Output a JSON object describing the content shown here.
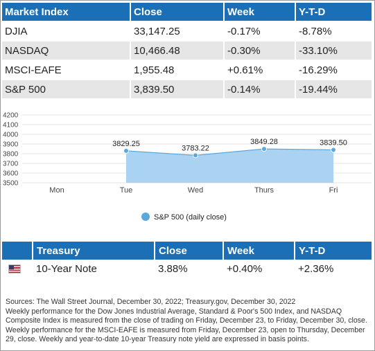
{
  "market_table": {
    "headers": [
      "Market Index",
      "Close",
      "Week",
      "Y-T-D"
    ],
    "rows": [
      [
        "DJIA",
        "33,147.25",
        "-0.17%",
        "-8.78%"
      ],
      [
        "NASDAQ",
        "10,466.48",
        "-0.30%",
        "-33.10%"
      ],
      [
        "MSCI-EAFE",
        "1,955.48",
        "+0.61%",
        "-16.29%"
      ],
      [
        "S&P 500",
        "3,839.50",
        "-0.14%",
        "-19.44%"
      ]
    ]
  },
  "chart_data": {
    "type": "area",
    "categories": [
      "Mon",
      "Tue",
      "Wed",
      "Thurs",
      "Fri"
    ],
    "series": [
      {
        "name": "S&P 500 (daily close)",
        "values": [
          null,
          3829.25,
          3783.22,
          3849.28,
          3839.5
        ],
        "labels": [
          "",
          "3829.25",
          "3783.22",
          "3849.28",
          "3839.50"
        ]
      }
    ],
    "ylim": [
      3500,
      4200
    ],
    "yticks": [
      "4200",
      "4100",
      "4000",
      "3900",
      "3800",
      "3700",
      "3600",
      "3500"
    ],
    "grid": true,
    "legend_position": "bottom",
    "colors": {
      "fill": "#a9d3f0",
      "line": "#5aa8dd",
      "marker": "#5aa8dd"
    }
  },
  "treasury_table": {
    "headers": [
      "Treasury",
      "Close",
      "Week",
      "Y-T-D"
    ],
    "row": [
      "10-Year Note",
      "3.88%",
      "+0.40%",
      "+2.36%"
    ],
    "flag_icon": "us-flag-icon"
  },
  "notes": {
    "sources": "Sources: The Wall Street Journal, December 30, 2022; Treasury.gov, December 30, 2022",
    "p1": "Weekly performance for the Dow Jones Industrial Average, Standard & Poor's 500 Index, and NASDAQ Composite Index is measured from the close of trading on Friday, December 23, to Friday, December 30, close.",
    "p2": "Weekly performance for the MSCI-EAFE is measured from Friday, December 23, open to Thursday, December 29, close. Weekly and year-to-date 10-year Treasury note yield are expressed in basis points."
  },
  "colors": {
    "header_blue": "#1b6fb6",
    "row_gray": "#e6e6e6"
  }
}
